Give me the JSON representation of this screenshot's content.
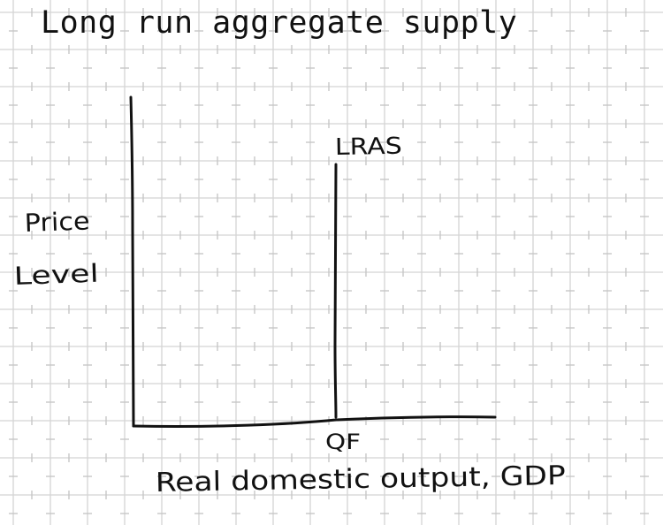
{
  "title": "Long run aggregate supply",
  "diagram": {
    "curve_label": "LRAS",
    "y_axis_label_line1": "Price",
    "y_axis_label_line2": "Level",
    "x_axis_label": "Real domestic output, GDP",
    "x_marker_label": "QF"
  },
  "colors": {
    "ink": "#111111",
    "grid": "#d4d4d4",
    "background": "#ffffff"
  }
}
